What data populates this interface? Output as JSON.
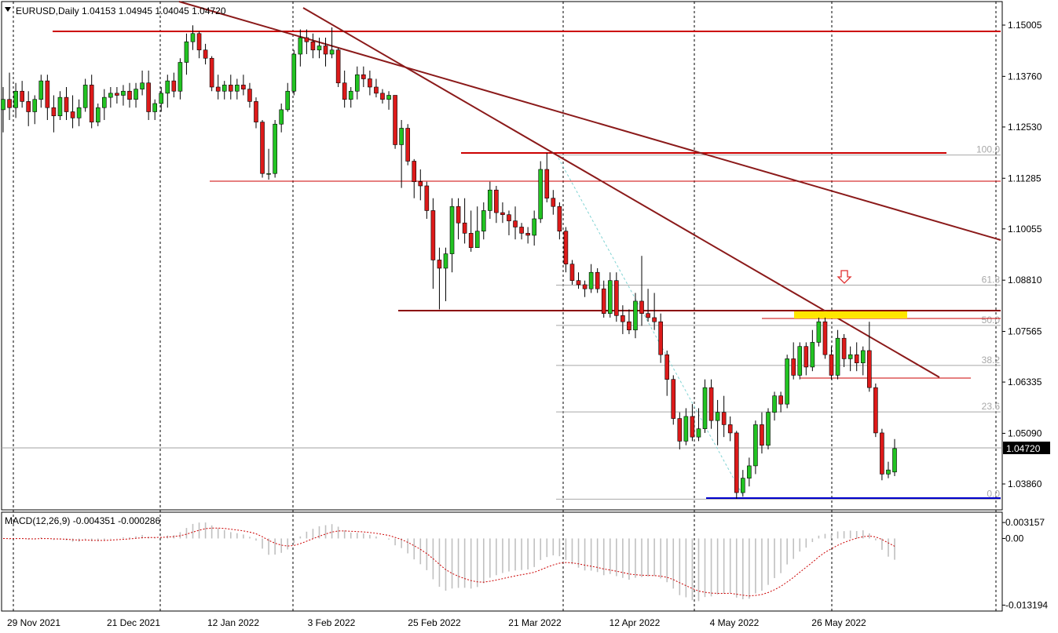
{
  "chart_data": {
    "type": "candlestick",
    "symbol_line": "EURUSD,Daily  1.04153 1.04945 1.04045 1.04720",
    "price_axis_ticks": [
      "1.15005",
      "1.13760",
      "1.12530",
      "1.11285",
      "1.10055",
      "1.08810",
      "1.07565",
      "1.06335",
      "1.05090",
      "1.03860"
    ],
    "price_ylim": [
      1.0318,
      1.1577
    ],
    "current_price_label": "1.04720",
    "current_price": 1.0472,
    "date_labels": [
      "29 Nov 2021",
      "21 Dec 2021",
      "12 Jan 2022",
      "3 Feb 2022",
      "25 Feb 2022",
      "21 Mar 2022",
      "12 Apr 2022",
      "4 May 2022",
      "26 May 2022"
    ],
    "fib_labels": [
      "100.0",
      "61.8",
      "50.0",
      "38.2",
      "23.6",
      "0.0"
    ],
    "fib_levels": [
      1.1185,
      1.0869,
      1.0771,
      1.0674,
      1.0561,
      1.0349
    ],
    "candles": [
      [
        1.1295,
        1.135,
        1.124,
        1.132
      ],
      [
        1.132,
        1.1385,
        1.127,
        1.13
      ],
      [
        1.13,
        1.136,
        1.1275,
        1.134
      ],
      [
        1.134,
        1.1365,
        1.13,
        1.1315
      ],
      [
        1.1315,
        1.134,
        1.1255,
        1.129
      ],
      [
        1.129,
        1.133,
        1.126,
        1.132
      ],
      [
        1.132,
        1.138,
        1.13,
        1.1365
      ],
      [
        1.1365,
        1.138,
        1.127,
        1.13
      ],
      [
        1.13,
        1.133,
        1.124,
        1.128
      ],
      [
        1.128,
        1.134,
        1.127,
        1.1325
      ],
      [
        1.1325,
        1.135,
        1.127,
        1.129
      ],
      [
        1.129,
        1.133,
        1.125,
        1.1275
      ],
      [
        1.1275,
        1.132,
        1.1255,
        1.13
      ],
      [
        1.13,
        1.137,
        1.129,
        1.1355
      ],
      [
        1.1355,
        1.138,
        1.125,
        1.1265
      ],
      [
        1.1265,
        1.131,
        1.1255,
        1.13
      ],
      [
        1.13,
        1.1345,
        1.127,
        1.1325
      ],
      [
        1.1325,
        1.135,
        1.13,
        1.1335
      ],
      [
        1.1335,
        1.135,
        1.131,
        1.133
      ],
      [
        1.133,
        1.1355,
        1.1305,
        1.134
      ],
      [
        1.134,
        1.136,
        1.13,
        1.132
      ],
      [
        1.132,
        1.136,
        1.13,
        1.1345
      ],
      [
        1.1345,
        1.139,
        1.133,
        1.136
      ],
      [
        1.136,
        1.139,
        1.127,
        1.129
      ],
      [
        1.129,
        1.132,
        1.127,
        1.131
      ],
      [
        1.131,
        1.135,
        1.129,
        1.1335
      ],
      [
        1.1335,
        1.138,
        1.13,
        1.1365
      ],
      [
        1.1365,
        1.1385,
        1.1325,
        1.134
      ],
      [
        1.134,
        1.142,
        1.132,
        1.141
      ],
      [
        1.141,
        1.148,
        1.138,
        1.146
      ],
      [
        1.146,
        1.15,
        1.144,
        1.148
      ],
      [
        1.148,
        1.1485,
        1.142,
        1.144
      ],
      [
        1.144,
        1.1455,
        1.1405,
        1.142
      ],
      [
        1.142,
        1.1425,
        1.134,
        1.135
      ],
      [
        1.135,
        1.138,
        1.132,
        1.134
      ],
      [
        1.134,
        1.1365,
        1.132,
        1.1355
      ],
      [
        1.1355,
        1.138,
        1.132,
        1.134
      ],
      [
        1.134,
        1.137,
        1.132,
        1.1355
      ],
      [
        1.1355,
        1.138,
        1.133,
        1.1345
      ],
      [
        1.1345,
        1.136,
        1.13,
        1.1315
      ],
      [
        1.1315,
        1.1325,
        1.125,
        1.1265
      ],
      [
        1.1265,
        1.127,
        1.113,
        1.114
      ],
      [
        1.114,
        1.12,
        1.1125,
        1.114
      ],
      [
        1.114,
        1.127,
        1.113,
        1.126
      ],
      [
        1.126,
        1.131,
        1.124,
        1.1295
      ],
      [
        1.1295,
        1.136,
        1.129,
        1.134
      ],
      [
        1.134,
        1.144,
        1.133,
        1.143
      ],
      [
        1.143,
        1.149,
        1.14,
        1.147
      ],
      [
        1.147,
        1.149,
        1.143,
        1.146
      ],
      [
        1.146,
        1.148,
        1.142,
        1.144
      ],
      [
        1.144,
        1.147,
        1.142,
        1.145
      ],
      [
        1.145,
        1.147,
        1.14,
        1.143
      ],
      [
        1.143,
        1.1495,
        1.142,
        1.144
      ],
      [
        1.144,
        1.1445,
        1.135,
        1.136
      ],
      [
        1.136,
        1.139,
        1.13,
        1.132
      ],
      [
        1.132,
        1.135,
        1.13,
        1.134
      ],
      [
        1.134,
        1.14,
        1.132,
        1.138
      ],
      [
        1.138,
        1.14,
        1.135,
        1.137
      ],
      [
        1.137,
        1.139,
        1.133,
        1.135
      ],
      [
        1.135,
        1.137,
        1.1325,
        1.1335
      ],
      [
        1.1335,
        1.1345,
        1.131,
        1.132
      ],
      [
        1.132,
        1.134,
        1.1295,
        1.133
      ],
      [
        1.133,
        1.133,
        1.12,
        1.121
      ],
      [
        1.121,
        1.127,
        1.1105,
        1.125
      ],
      [
        1.125,
        1.126,
        1.116,
        1.117
      ],
      [
        1.117,
        1.1175,
        1.108,
        1.112
      ],
      [
        1.112,
        1.115,
        1.1075,
        1.111
      ],
      [
        1.111,
        1.112,
        1.103,
        1.105
      ],
      [
        1.105,
        1.108,
        1.086,
        1.093
      ],
      [
        1.093,
        1.096,
        1.081,
        1.091
      ],
      [
        1.091,
        1.096,
        1.083,
        1.0945
      ],
      [
        1.0945,
        1.108,
        1.09,
        1.106
      ],
      [
        1.106,
        1.108,
        1.098,
        1.102
      ],
      [
        1.102,
        1.108,
        1.097,
        1.0995
      ],
      [
        1.0995,
        1.105,
        1.095,
        1.096
      ],
      [
        1.096,
        1.106,
        1.096,
        1.1
      ],
      [
        1.1,
        1.107,
        1.098,
        1.105
      ],
      [
        1.105,
        1.112,
        1.103,
        1.11
      ],
      [
        1.11,
        1.111,
        1.102,
        1.1045
      ],
      [
        1.1045,
        1.107,
        1.102,
        1.104
      ],
      [
        1.104,
        1.105,
        1.099,
        1.1025
      ],
      [
        1.1025,
        1.106,
        1.098,
        1.101
      ],
      [
        1.101,
        1.102,
        1.098,
        1.0995
      ],
      [
        1.0995,
        1.101,
        1.097,
        1.099
      ],
      [
        1.099,
        1.105,
        1.0965,
        1.103
      ],
      [
        1.103,
        1.117,
        1.102,
        1.115
      ],
      [
        1.115,
        1.119,
        1.107,
        1.108
      ],
      [
        1.108,
        1.11,
        1.104,
        1.106
      ],
      [
        1.106,
        1.107,
        1.098,
        1.1
      ],
      [
        1.1,
        1.101,
        1.09,
        1.092
      ],
      [
        1.092,
        1.093,
        1.087,
        1.088
      ],
      [
        1.088,
        1.09,
        1.086,
        1.087
      ],
      [
        1.087,
        1.088,
        1.084,
        1.086
      ],
      [
        1.086,
        1.092,
        1.085,
        1.09
      ],
      [
        1.09,
        1.091,
        1.085,
        1.086
      ],
      [
        1.086,
        1.088,
        1.079,
        1.08
      ],
      [
        1.08,
        1.09,
        1.079,
        1.088
      ],
      [
        1.088,
        1.09,
        1.078,
        1.0795
      ],
      [
        1.0795,
        1.082,
        1.075,
        1.078
      ],
      [
        1.078,
        1.081,
        1.075,
        1.076
      ],
      [
        1.076,
        1.085,
        1.074,
        1.083
      ],
      [
        1.083,
        1.094,
        1.077,
        1.08
      ],
      [
        1.08,
        1.086,
        1.078,
        1.079
      ],
      [
        1.079,
        1.085,
        1.076,
        1.078
      ],
      [
        1.078,
        1.08,
        1.068,
        1.07
      ],
      [
        1.07,
        1.071,
        1.06,
        1.064
      ],
      [
        1.064,
        1.065,
        1.053,
        1.0545
      ],
      [
        1.0545,
        1.056,
        1.047,
        1.049
      ],
      [
        1.049,
        1.057,
        1.048,
        1.055
      ],
      [
        1.055,
        1.058,
        1.049,
        1.05
      ],
      [
        1.05,
        1.057,
        1.049,
        1.052
      ],
      [
        1.052,
        1.064,
        1.051,
        1.062
      ],
      [
        1.062,
        1.064,
        1.052,
        1.054
      ],
      [
        1.054,
        1.059,
        1.048,
        1.056
      ],
      [
        1.056,
        1.06,
        1.05,
        1.053
      ],
      [
        1.053,
        1.055,
        1.049,
        1.051
      ],
      [
        1.051,
        1.0515,
        1.035,
        1.0365
      ],
      [
        1.0365,
        1.042,
        1.0355,
        1.04
      ],
      [
        1.04,
        1.045,
        1.038,
        1.043
      ],
      [
        1.043,
        1.054,
        1.041,
        1.053
      ],
      [
        1.053,
        1.056,
        1.046,
        1.048
      ],
      [
        1.048,
        1.057,
        1.047,
        1.056
      ],
      [
        1.056,
        1.061,
        1.054,
        1.06
      ],
      [
        1.06,
        1.061,
        1.056,
        1.058
      ],
      [
        1.058,
        1.07,
        1.057,
        1.069
      ],
      [
        1.069,
        1.073,
        1.064,
        1.065
      ],
      [
        1.065,
        1.073,
        1.064,
        1.072
      ],
      [
        1.072,
        1.073,
        1.065,
        1.067
      ],
      [
        1.067,
        1.076,
        1.066,
        1.073
      ],
      [
        1.073,
        1.079,
        1.072,
        1.078
      ],
      [
        1.078,
        1.079,
        1.069,
        1.07
      ],
      [
        1.07,
        1.072,
        1.064,
        1.065
      ],
      [
        1.065,
        1.076,
        1.064,
        1.074
      ],
      [
        1.074,
        1.075,
        1.067,
        1.069
      ],
      [
        1.069,
        1.072,
        1.066,
        1.07
      ],
      [
        1.07,
        1.073,
        1.066,
        1.068
      ],
      [
        1.068,
        1.072,
        1.065,
        1.071
      ],
      [
        1.071,
        1.078,
        1.061,
        1.062
      ],
      [
        1.062,
        1.063,
        1.05,
        1.051
      ],
      [
        1.051,
        1.052,
        1.0395,
        1.041
      ],
      [
        1.041,
        1.044,
        1.04,
        1.042
      ],
      [
        1.0415,
        1.0495,
        1.0405,
        1.0472
      ]
    ],
    "macd": {
      "label": "MACD(12,26,9) -0.004351 -0.000286",
      "ticks": [
        "0.003157",
        "0.00",
        "-0.013194"
      ],
      "ylim": [
        -0.0139,
        0.0038
      ],
      "zero": 0.0
    }
  }
}
